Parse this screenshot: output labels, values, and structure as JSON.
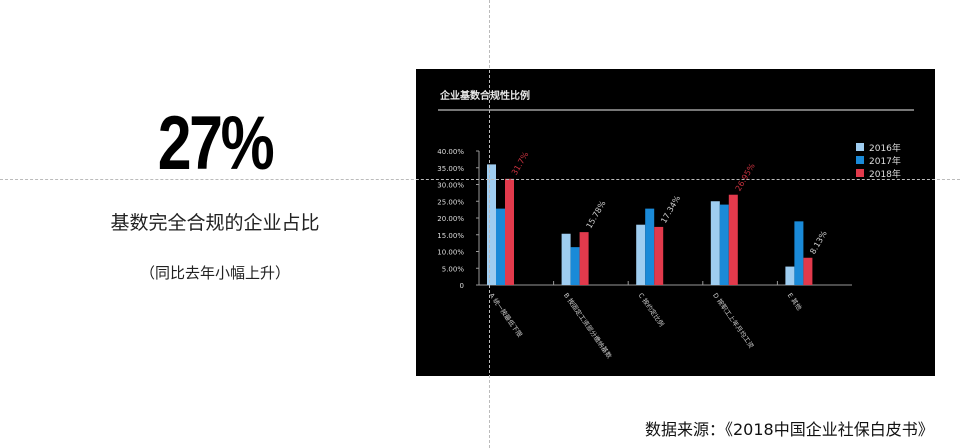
{
  "headline": {
    "value": "27%",
    "caption": "基数完全合规的企业占比",
    "note": "（同比去年小幅上升）"
  },
  "source": "数据来源：《2018中国企业社保白皮书》",
  "chart_data": {
    "type": "bar",
    "title": "企业基数合规性比例",
    "categories": [
      "A 统一按最低下限",
      "B 按固定工资部分缴纳基数",
      "C 按约定比例",
      "D 按职工上年月均工资",
      "E 其他"
    ],
    "series": [
      {
        "name": "2016年",
        "color": "#9fcdf0",
        "values": [
          36.0,
          15.3,
          18.0,
          25.0,
          5.5
        ]
      },
      {
        "name": "2017年",
        "color": "#1a8ad8",
        "values": [
          22.8,
          11.3,
          22.8,
          24.0,
          19.0
        ]
      },
      {
        "name": "2018年",
        "color": "#e23a4c",
        "values": [
          31.7,
          15.78,
          17.34,
          26.95,
          8.13
        ]
      }
    ],
    "data_labels": [
      "31.7%",
      "15.78%",
      "17.34%",
      "26.95%",
      "8.13%"
    ],
    "data_label_colors": [
      "#c8323f",
      "#cccccc",
      "#cccccc",
      "#c8323f",
      "#cccccc"
    ],
    "yticks": [
      "0",
      "5.00%",
      "10.00%",
      "15.00%",
      "20.00%",
      "25.00%",
      "30.00%",
      "35.00%",
      "40.00%"
    ],
    "ylim": [
      0,
      40
    ],
    "legend": "top-right",
    "grid": false
  }
}
